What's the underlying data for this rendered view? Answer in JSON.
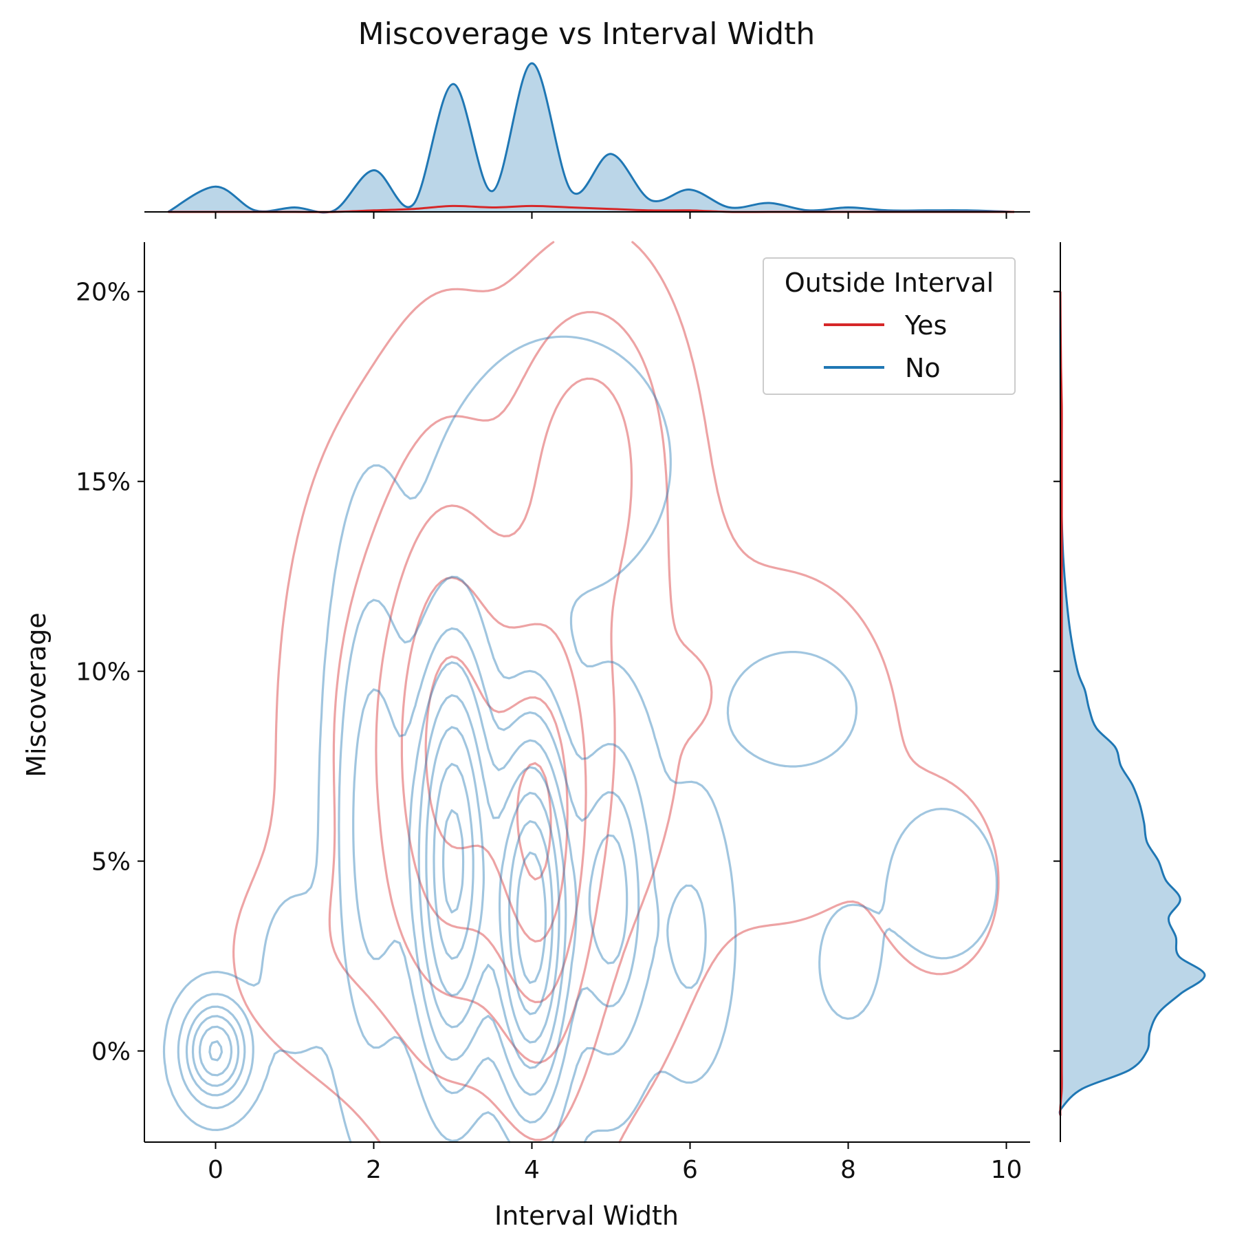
{
  "chart_data": {
    "type": "kde_joint",
    "title": "Miscoverage vs Interval Width",
    "xlabel": "Interval Width",
    "ylabel": "Miscoverage",
    "xlim": [
      -0.9,
      10.3
    ],
    "ylim": [
      -2.4,
      21.3
    ],
    "x_ticks": [
      0,
      2,
      4,
      6,
      8,
      10
    ],
    "x_tick_labels": [
      "0",
      "2",
      "4",
      "6",
      "8",
      "10"
    ],
    "y_ticks": [
      0,
      5,
      10,
      15,
      20
    ],
    "y_tick_labels": [
      "0%",
      "5%",
      "10%",
      "15%",
      "20%"
    ],
    "legend": {
      "title": "Outside Interval",
      "placement": "top-right",
      "entries": [
        {
          "label": "Yes",
          "color": "#d62728"
        },
        {
          "label": "No",
          "color": "#1f77b4"
        }
      ]
    },
    "colors": {
      "yes": "#d62728",
      "no": "#1f77b4",
      "fill": "#b9d4e8"
    },
    "series": [
      {
        "name": "Yes",
        "color": "#d62728",
        "components": [
          {
            "mx": 3.0,
            "my": 8.0,
            "sx": 0.55,
            "sy": 5.0,
            "w": 1.0
          },
          {
            "mx": 4.1,
            "my": 5.5,
            "sx": 0.45,
            "sy": 4.5,
            "w": 1.0
          },
          {
            "mx": 4.7,
            "my": 16.0,
            "sx": 0.6,
            "sy": 2.5,
            "w": 0.5
          },
          {
            "mx": 5.0,
            "my": 9.0,
            "sx": 0.7,
            "sy": 5.5,
            "w": 0.4
          },
          {
            "mx": 2.0,
            "my": 8.0,
            "sx": 0.7,
            "sy": 5.0,
            "w": 0.3
          },
          {
            "mx": 6.0,
            "my": 9.5,
            "sx": 0.25,
            "sy": 0.7,
            "w": 0.15
          },
          {
            "mx": 9.2,
            "my": 4.4,
            "sx": 0.45,
            "sy": 1.5,
            "w": 0.2
          },
          {
            "mx": 7.2,
            "my": 8.0,
            "sx": 1.1,
            "sy": 3.5,
            "w": 0.15
          },
          {
            "mx": 1.2,
            "my": 2.5,
            "sx": 0.8,
            "sy": 1.8,
            "w": 0.12
          }
        ],
        "levels": [
          0.05,
          0.2,
          0.4,
          0.6,
          0.8,
          0.95
        ]
      },
      {
        "name": "No",
        "color": "#1f77b4",
        "components": [
          {
            "mx": 0.0,
            "my": 0.0,
            "sx": 0.25,
            "sy": 0.8,
            "w": 1.4
          },
          {
            "mx": 3.0,
            "my": 5.0,
            "sx": 0.32,
            "sy": 3.5,
            "w": 2.2
          },
          {
            "mx": 4.0,
            "my": 3.5,
            "sx": 0.3,
            "sy": 3.0,
            "w": 2.4
          },
          {
            "mx": 5.0,
            "my": 4.0,
            "sx": 0.3,
            "sy": 2.5,
            "w": 0.9
          },
          {
            "mx": 2.0,
            "my": 6.0,
            "sx": 0.3,
            "sy": 4.0,
            "w": 0.7
          },
          {
            "mx": 6.0,
            "my": 3.0,
            "sx": 0.3,
            "sy": 2.0,
            "w": 0.3
          },
          {
            "mx": 1.0,
            "my": 2.0,
            "sx": 0.3,
            "sy": 1.5,
            "w": 0.12
          },
          {
            "mx": 8.0,
            "my": 2.3,
            "sx": 0.3,
            "sy": 1.2,
            "w": 0.1
          },
          {
            "mx": 9.2,
            "my": 4.4,
            "sx": 0.45,
            "sy": 1.3,
            "w": 0.15
          },
          {
            "mx": 7.3,
            "my": 9.0,
            "sx": 0.8,
            "sy": 1.5,
            "w": 0.08
          },
          {
            "mx": 4.4,
            "my": 15.5,
            "sx": 0.9,
            "sy": 2.2,
            "w": 0.15
          }
        ],
        "levels": [
          0.02,
          0.1,
          0.2,
          0.3,
          0.42,
          0.55,
          0.7,
          0.85
        ]
      }
    ],
    "marginal_x": {
      "grid": [
        -0.6,
        0.0,
        0.5,
        1.0,
        1.5,
        2.0,
        2.5,
        3.0,
        3.5,
        4.0,
        4.5,
        5.0,
        5.5,
        6.0,
        6.5,
        7.0,
        7.5,
        8.0,
        8.5,
        9.0,
        9.5,
        10.1
      ],
      "no_density": [
        0.0,
        0.17,
        0.01,
        0.03,
        0.01,
        0.28,
        0.05,
        0.86,
        0.14,
        1.0,
        0.14,
        0.39,
        0.08,
        0.15,
        0.03,
        0.06,
        0.01,
        0.03,
        0.01,
        0.01,
        0.01,
        0.0
      ],
      "yes_density": [
        0.0,
        0.0,
        0.0,
        0.0,
        0.0,
        0.01,
        0.02,
        0.04,
        0.03,
        0.04,
        0.03,
        0.02,
        0.01,
        0.01,
        0.0,
        0.0,
        0.0,
        0.0,
        0.0,
        0.0,
        0.0,
        0.0
      ]
    },
    "marginal_y": {
      "grid": [
        -1.7,
        -1.5,
        -1.0,
        -0.5,
        0.0,
        0.5,
        1.0,
        1.5,
        2.0,
        2.5,
        3.0,
        3.5,
        4.0,
        4.5,
        5.0,
        5.5,
        6.0,
        6.5,
        7.0,
        7.5,
        8.0,
        8.5,
        9.0,
        9.5,
        10.0,
        11.0,
        12.0,
        13.0,
        14.0,
        15.0,
        16.0,
        17.0,
        18.0,
        19.0,
        20.0
      ],
      "no_density": [
        0.0,
        0.01,
        0.15,
        0.48,
        0.6,
        0.62,
        0.68,
        0.83,
        1.0,
        0.82,
        0.8,
        0.75,
        0.83,
        0.73,
        0.68,
        0.6,
        0.58,
        0.55,
        0.5,
        0.42,
        0.38,
        0.25,
        0.2,
        0.17,
        0.12,
        0.07,
        0.04,
        0.02,
        0.01,
        0.005,
        0.003,
        0.002,
        0.001,
        0.0,
        0.0
      ],
      "yes_density": [
        0.0,
        0.0,
        0.01,
        0.01,
        0.01,
        0.01,
        0.01,
        0.01,
        0.01,
        0.01,
        0.01,
        0.01,
        0.01,
        0.01,
        0.01,
        0.01,
        0.01,
        0.01,
        0.01,
        0.01,
        0.01,
        0.01,
        0.01,
        0.01,
        0.01,
        0.01,
        0.01,
        0.01,
        0.01,
        0.01,
        0.01,
        0.01,
        0.005,
        0.002,
        0.0
      ]
    }
  }
}
